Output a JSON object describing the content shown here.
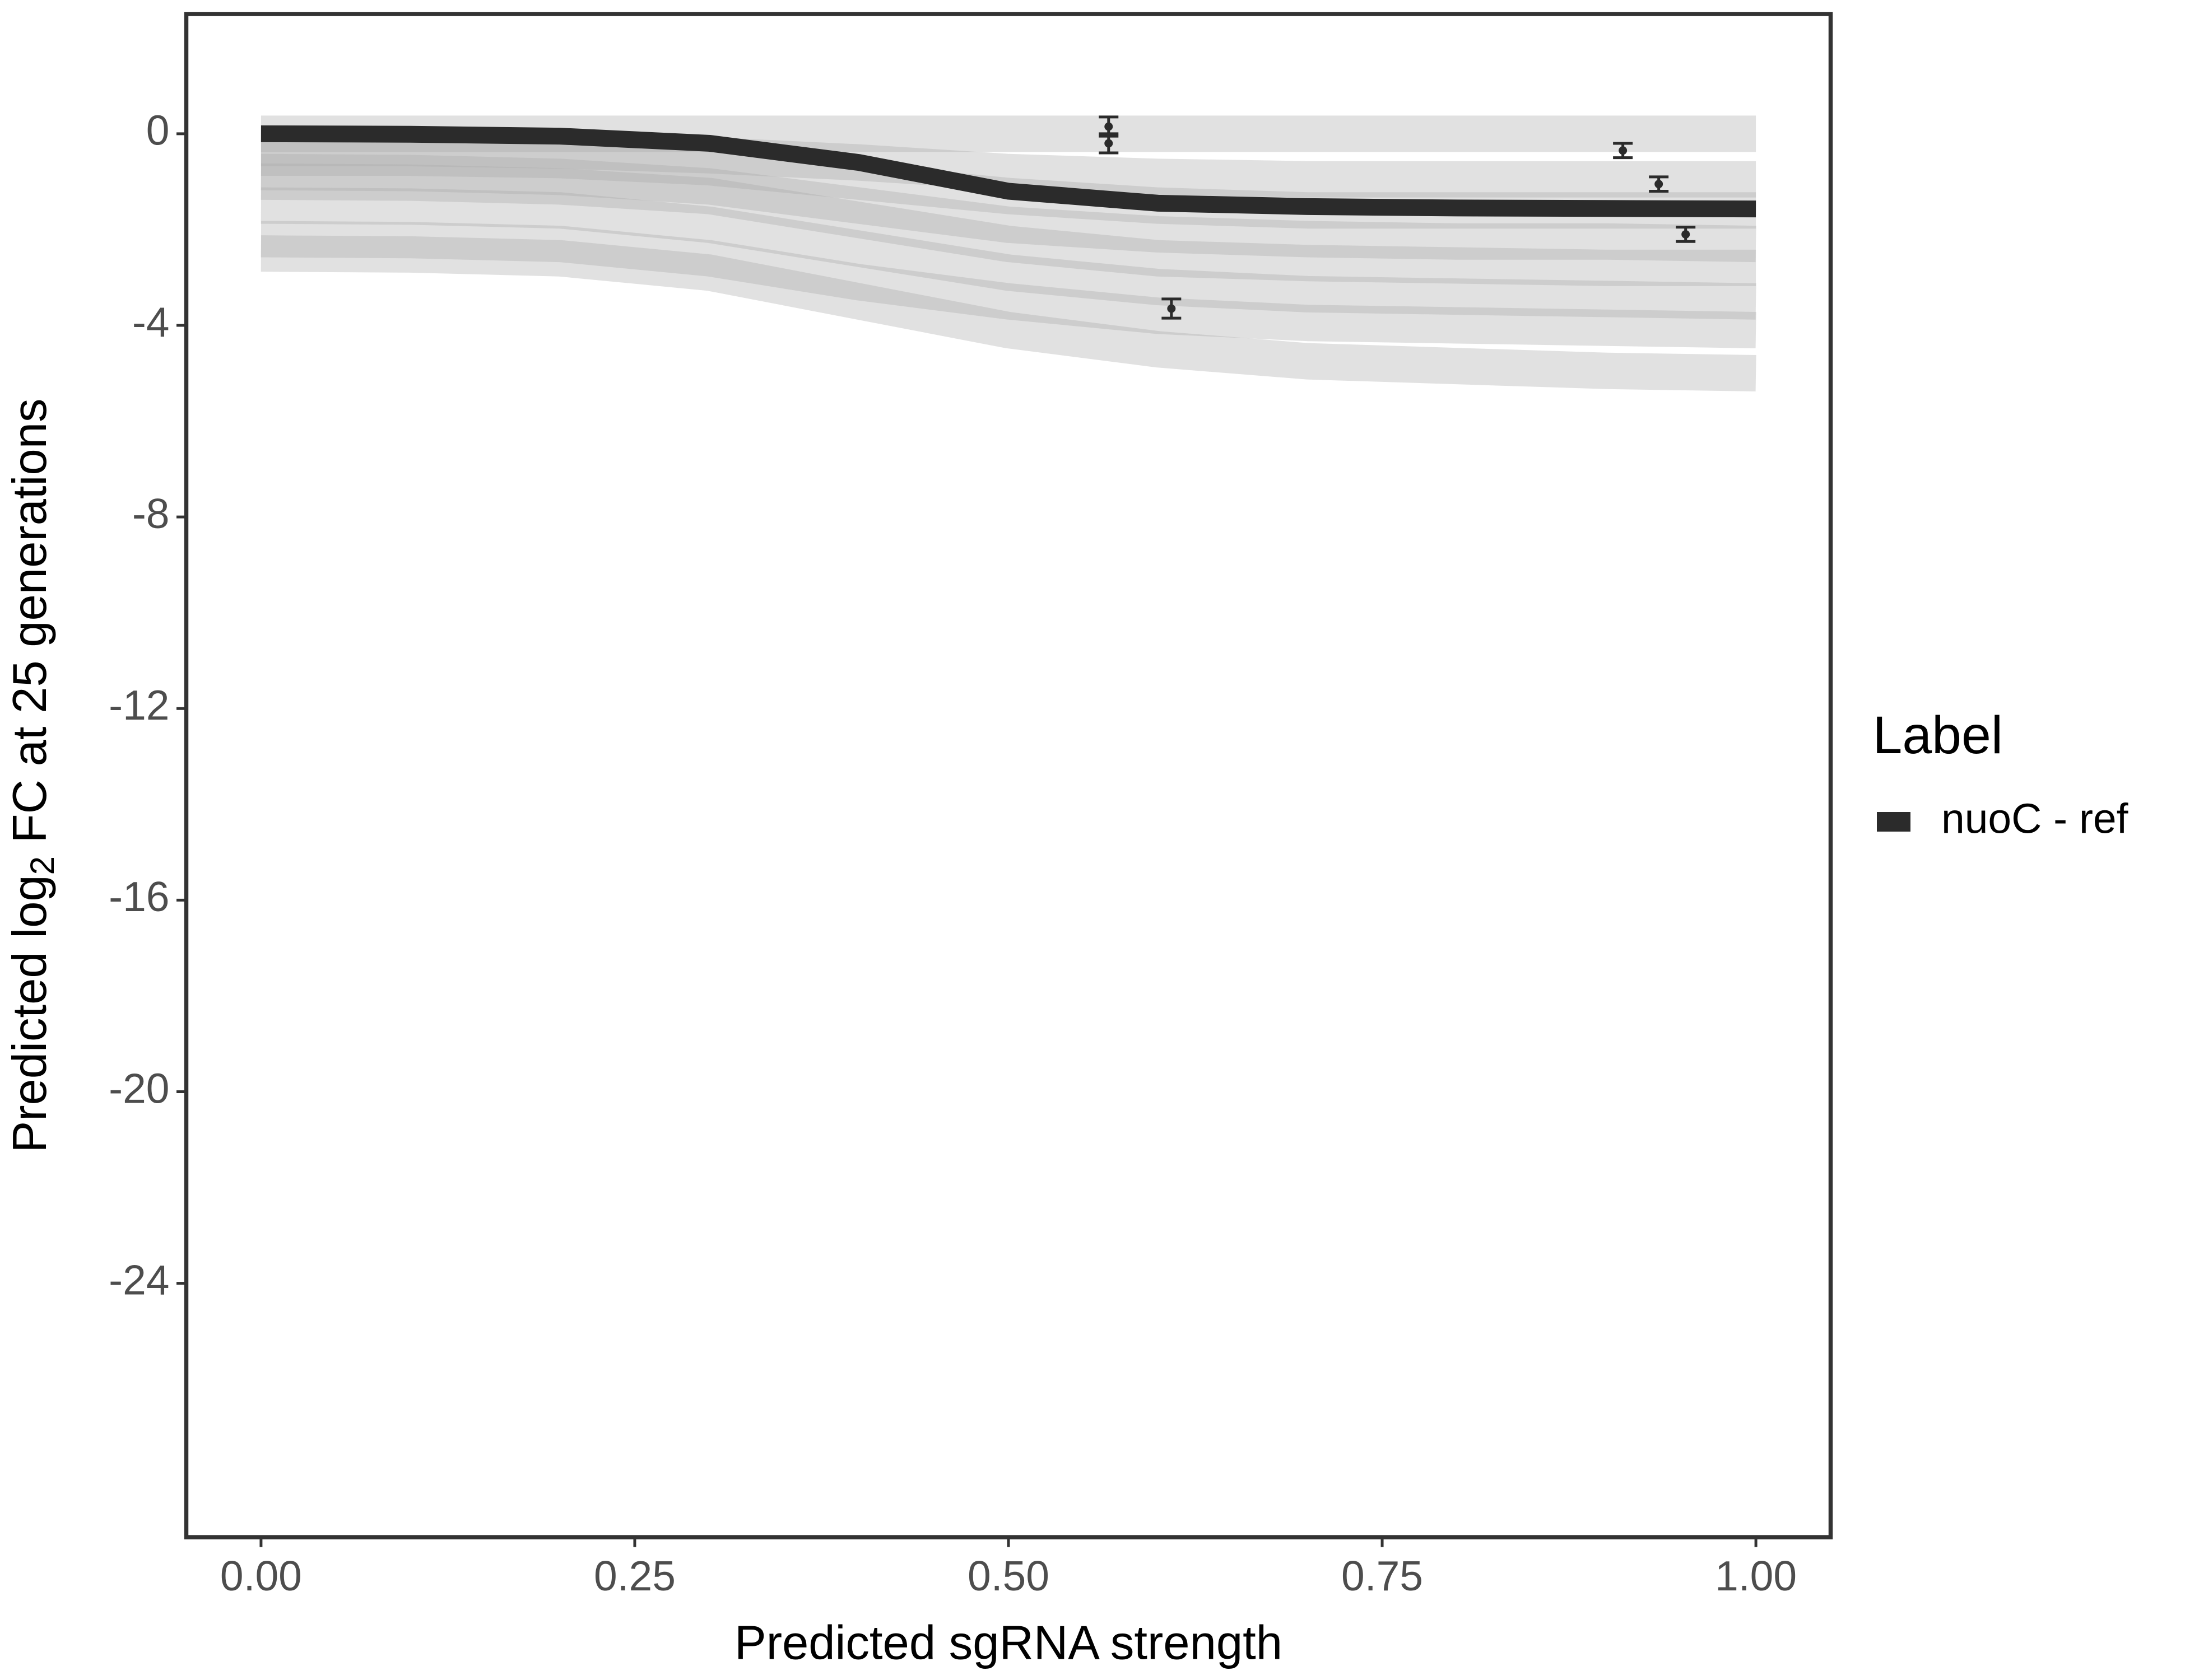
{
  "chart_data": {
    "type": "line",
    "xlabel": "Predicted sgRNA strength",
    "ylabel": [
      "Predicted  log",
      "2",
      " FC at 25 generations"
    ],
    "xlim": [
      -0.05,
      1.05
    ],
    "ylim": [
      -29.3,
      2.5
    ],
    "xticks": [
      {
        "value": 0,
        "label": "0.00"
      },
      {
        "value": 0.25,
        "label": "0.25"
      },
      {
        "value": 0.5,
        "label": "0.50"
      },
      {
        "value": 0.75,
        "label": "0.75"
      },
      {
        "value": 1,
        "label": "1.00"
      }
    ],
    "yticks": [
      0,
      -4,
      -8,
      -12,
      -16,
      -20,
      -24
    ],
    "legend_title": "Label",
    "x": [
      0,
      0.1,
      0.2,
      0.3,
      0.4,
      0.5,
      0.6,
      0.7,
      0.8,
      0.9,
      1
    ],
    "draws": [
      {
        "color": "#a9a9a9",
        "values": [
          0,
          0,
          0,
          0,
          0,
          0,
          0,
          0,
          0,
          0,
          0
        ]
      },
      {
        "color": "#a9a9a9",
        "values": [
          -0.3,
          -0.3,
          -0.35,
          -0.45,
          -0.6,
          -0.8,
          -0.9,
          -0.95,
          -0.95,
          -0.95,
          -0.95
        ]
      },
      {
        "color": "#a9a9a9",
        "values": [
          -0.5,
          -0.5,
          -0.55,
          -0.7,
          -1.0,
          -1.3,
          -1.5,
          -1.6,
          -1.6,
          -1.6,
          -1.6
        ]
      },
      {
        "color": "#a9a9a9",
        "values": [
          -0.8,
          -0.82,
          -0.9,
          -1.1,
          -1.5,
          -1.9,
          -2.1,
          -2.2,
          -2.25,
          -2.25,
          -2.3
        ]
      },
      {
        "color": "#a9a9a9",
        "values": [
          -1,
          -1.02,
          -1.1,
          -1.3,
          -1.8,
          -2.3,
          -2.6,
          -2.7,
          -2.75,
          -2.8,
          -2.8
        ]
      },
      {
        "color": "#a9a9a9",
        "values": [
          -1.5,
          -1.52,
          -1.6,
          -1.9,
          -2.4,
          -2.9,
          -3.2,
          -3.35,
          -3.4,
          -3.45,
          -3.5
        ]
      },
      {
        "color": "#a9a9a9",
        "values": [
          -2.2,
          -2.22,
          -2.3,
          -2.6,
          -3.1,
          -3.5,
          -3.8,
          -3.95,
          -4.0,
          -4.05,
          -4.1
        ]
      },
      {
        "color": "#a9a9a9",
        "values": [
          -2.5,
          -2.52,
          -2.6,
          -2.9,
          -3.5,
          -4.1,
          -4.5,
          -4.75,
          -4.85,
          -4.95,
          -5.0
        ]
      }
    ],
    "series": [
      {
        "name": "nuoC - ref",
        "color": "#2b2b2b",
        "values": [
          0,
          -0.01,
          -0.05,
          -0.2,
          -0.6,
          -1.2,
          -1.45,
          -1.52,
          -1.55,
          -1.56,
          -1.57
        ]
      }
    ],
    "points": {
      "color": "#2b2b2b",
      "x": [
        0.567,
        0.567,
        0.609,
        0.911,
        0.935,
        0.953
      ],
      "y": [
        0.15,
        -0.2,
        -3.65,
        -0.35,
        -1.05,
        -2.1
      ],
      "err": [
        0.2,
        0.2,
        0.2,
        0.15,
        0.15,
        0.15
      ]
    }
  }
}
